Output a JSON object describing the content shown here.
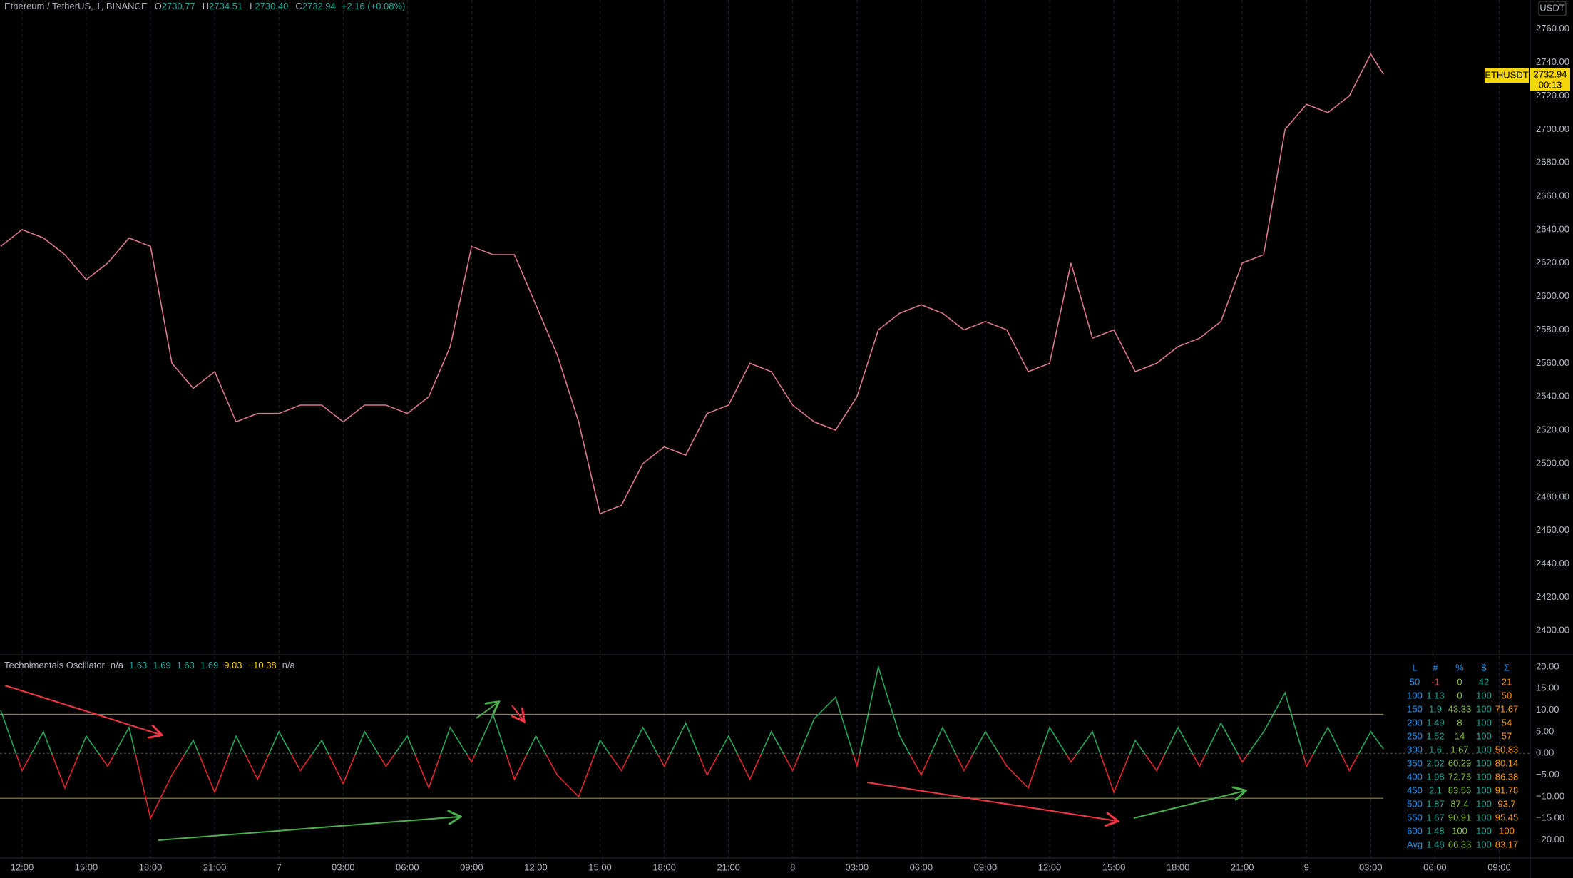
{
  "header": {
    "symbol": "Ethereum / TetherUS, 1, BINANCE",
    "ohlc": [
      {
        "label": "O",
        "value": "2730.77"
      },
      {
        "label": "H",
        "value": "2734.51"
      },
      {
        "label": "L",
        "value": "2730.40"
      },
      {
        "label": "C",
        "value": "2732.94"
      }
    ],
    "change": "+2.16 (+0.08%)",
    "currency": "USDT"
  },
  "price_tag": {
    "symbol": "ETHUSDT",
    "price": "2732.94",
    "countdown": "00:13"
  },
  "chart_data": [
    {
      "type": "line",
      "color": "#d9778f",
      "x": [
        -1,
        0,
        1,
        2,
        3,
        4,
        5,
        6,
        7,
        8,
        9,
        10,
        11,
        12,
        13,
        14,
        15,
        16,
        17,
        18,
        19,
        20,
        21,
        22,
        23,
        24,
        25,
        26,
        27,
        28,
        29,
        30,
        31,
        32,
        33,
        34,
        35,
        36,
        37,
        38,
        39,
        40,
        41,
        42,
        43,
        44,
        45,
        46,
        47,
        48,
        49,
        50,
        51,
        52,
        53,
        54,
        55,
        56,
        57,
        58,
        59,
        60,
        61,
        62,
        63,
        63.6
      ],
      "values": [
        2630,
        2640,
        2635,
        2625,
        2610,
        2620,
        2635,
        2630,
        2560,
        2545,
        2555,
        2525,
        2530,
        2530,
        2535,
        2535,
        2525,
        2535,
        2535,
        2530,
        2540,
        2570,
        2630,
        2625,
        2625,
        2595,
        2565,
        2525,
        2470,
        2475,
        2500,
        2510,
        2505,
        2530,
        2535,
        2560,
        2555,
        2535,
        2525,
        2520,
        2540,
        2580,
        2590,
        2595,
        2590,
        2580,
        2585,
        2580,
        2555,
        2560,
        2620,
        2575,
        2580,
        2555,
        2560,
        2570,
        2575,
        2585,
        2620,
        2625,
        2700,
        2715,
        2710,
        2720,
        2745,
        2732.94
      ],
      "xlim": [
        -1.03,
        70.45
      ],
      "ylim": [
        2385.6,
        2777.4
      ],
      "yticks": [
        {
          "value": 2760,
          "label": "2760.00"
        },
        {
          "value": 2740,
          "label": "2740.00"
        },
        {
          "value": 2720,
          "label": "2720.00"
        },
        {
          "value": 2700,
          "label": "2700.00"
        },
        {
          "value": 2680,
          "label": "2680.00"
        },
        {
          "value": 2660,
          "label": "2660.00"
        },
        {
          "value": 2640,
          "label": "2640.00"
        },
        {
          "value": 2620,
          "label": "2620.00"
        },
        {
          "value": 2600,
          "label": "2600.00"
        },
        {
          "value": 2580,
          "label": "2580.00"
        },
        {
          "value": 2560,
          "label": "2560.00"
        },
        {
          "value": 2540,
          "label": "2540.00"
        },
        {
          "value": 2520,
          "label": "2520.00"
        },
        {
          "value": 2500,
          "label": "2500.00"
        },
        {
          "value": 2480,
          "label": "2480.00"
        },
        {
          "value": 2460,
          "label": "2460.00"
        },
        {
          "value": 2440,
          "label": "2440.00"
        },
        {
          "value": 2420,
          "label": "2420.00"
        },
        {
          "value": 2400,
          "label": "2400.00"
        }
      ],
      "xticks": [
        {
          "value": 0,
          "label": "12:00"
        },
        {
          "value": 3,
          "label": "15:00"
        },
        {
          "value": 6,
          "label": "18:00"
        },
        {
          "value": 9,
          "label": "21:00"
        },
        {
          "value": 12,
          "label": "7"
        },
        {
          "value": 15,
          "label": "03:00"
        },
        {
          "value": 18,
          "label": "06:00"
        },
        {
          "value": 21,
          "label": "09:00"
        },
        {
          "value": 24,
          "label": "12:00"
        },
        {
          "value": 27,
          "label": "15:00"
        },
        {
          "value": 30,
          "label": "18:00"
        },
        {
          "value": 33,
          "label": "21:00"
        },
        {
          "value": 36,
          "label": "8"
        },
        {
          "value": 39,
          "label": "03:00"
        },
        {
          "value": 42,
          "label": "06:00"
        },
        {
          "value": 45,
          "label": "09:00"
        },
        {
          "value": 48,
          "label": "12:00"
        },
        {
          "value": 51,
          "label": "15:00"
        },
        {
          "value": 54,
          "label": "18:00"
        },
        {
          "value": 57,
          "label": "21:00"
        },
        {
          "value": 60,
          "label": "9"
        },
        {
          "value": 63,
          "label": "03:00"
        },
        {
          "value": 66,
          "label": "06:00"
        },
        {
          "value": 69,
          "label": "09:00"
        }
      ],
      "grid": true
    },
    {
      "type": "line",
      "title": "Technimentals Oscillator",
      "legend_values": [
        "n/a",
        "1.63",
        "1.69",
        "1.63",
        "1.69",
        "9.03",
        "−10.38",
        "n/a"
      ],
      "x": [
        -1,
        0,
        1,
        2,
        3,
        4,
        5,
        6,
        7,
        8,
        9,
        10,
        11,
        12,
        13,
        14,
        15,
        16,
        17,
        18,
        19,
        20,
        21,
        22,
        23,
        24,
        25,
        26,
        27,
        28,
        29,
        30,
        31,
        32,
        33,
        34,
        35,
        36,
        37,
        38,
        39,
        40,
        41,
        42,
        43,
        44,
        45,
        46,
        47,
        48,
        49,
        50,
        51,
        52,
        53,
        54,
        55,
        56,
        57,
        58,
        59,
        60,
        61,
        62,
        63,
        63.6
      ],
      "values": [
        10,
        -4,
        5,
        -8,
        4,
        -3,
        6,
        -15,
        -5,
        3,
        -9,
        4,
        -6,
        5,
        -4,
        3,
        -7,
        5,
        -3,
        4,
        -8,
        6,
        -2,
        9,
        -6,
        4,
        -5,
        -10,
        3,
        -4,
        6,
        -3,
        7,
        -5,
        4,
        -6,
        5,
        -4,
        8,
        13,
        -3,
        20,
        4,
        -5,
        6,
        -4,
        5,
        -3,
        -8,
        6,
        -2,
        5,
        -9,
        3,
        -4,
        6,
        -3,
        7,
        -2,
        5,
        14,
        -3,
        6,
        -4,
        5,
        1
      ],
      "bands": [
        9.03,
        -10.38
      ],
      "ylim": [
        -24.2,
        22.8
      ],
      "yticks": [
        {
          "value": 20,
          "label": "20.00"
        },
        {
          "value": 15,
          "label": "15.00"
        },
        {
          "value": 10,
          "label": "10.00"
        },
        {
          "value": 5,
          "label": "5.00"
        },
        {
          "value": 0,
          "label": "0.00"
        },
        {
          "value": -5,
          "label": "−5.00"
        },
        {
          "value": -10,
          "label": "−10.00"
        },
        {
          "value": -15,
          "label": "−15.00"
        },
        {
          "value": -20,
          "label": "−20.00"
        }
      ],
      "colors": {
        "above": "#26a65b",
        "below": "#e0262e",
        "band": "#8a8a3a"
      }
    }
  ],
  "table": {
    "header": [
      "L",
      "#",
      "%",
      "$",
      "Σ"
    ],
    "rows": [
      [
        "50",
        "-1",
        "0",
        "42",
        "21"
      ],
      [
        "100",
        "1.13",
        "0",
        "100",
        "50"
      ],
      [
        "150",
        "1.9",
        "43.33",
        "100",
        "71.67"
      ],
      [
        "200",
        "1.49",
        "8",
        "100",
        "54"
      ],
      [
        "250",
        "1.52",
        "14",
        "100",
        "57"
      ],
      [
        "300",
        "1.6",
        "1.67",
        "100",
        "50.83"
      ],
      [
        "350",
        "2.02",
        "60.29",
        "100",
        "80.14"
      ],
      [
        "400",
        "1.98",
        "72.75",
        "100",
        "86.38"
      ],
      [
        "450",
        "2.1",
        "83.56",
        "100",
        "91.78"
      ],
      [
        "500",
        "1.87",
        "87.4",
        "100",
        "93.7"
      ],
      [
        "550",
        "1.67",
        "90.91",
        "100",
        "95.45"
      ],
      [
        "600",
        "1.48",
        "100",
        "100",
        "100"
      ],
      [
        "Avg",
        "1.48",
        "66.33",
        "100",
        "83.17"
      ]
    ]
  }
}
